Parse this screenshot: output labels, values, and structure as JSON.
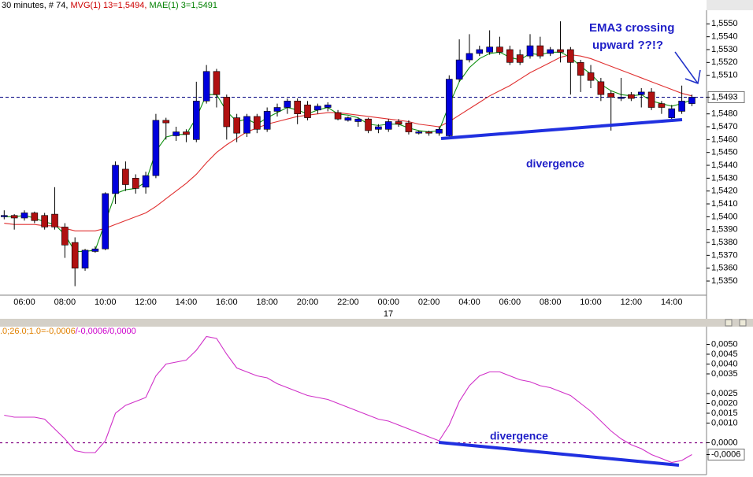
{
  "chart_data": [
    {
      "type": "candlestick",
      "title_parts": [
        {
          "text": "30 minutes, # 74,",
          "color": "#000000"
        },
        {
          "text": "MVG(1) 13=1,5494,",
          "color": "#cc0000"
        },
        {
          "text": "MAE(1) 3=1,5491",
          "color": "#008000"
        }
      ],
      "categories": [
        null,
        null,
        "06:00",
        null,
        null,
        null,
        "08:00",
        null,
        null,
        null,
        "10:00",
        null,
        null,
        null,
        "12:00",
        null,
        null,
        null,
        "14:00",
        null,
        null,
        null,
        "16:00",
        null,
        null,
        null,
        "18:00",
        null,
        null,
        null,
        "20:00",
        null,
        null,
        null,
        "22:00",
        null,
        null,
        null,
        "00:00",
        null,
        null,
        null,
        "02:00",
        null,
        null,
        null,
        "04:00",
        null,
        null,
        null,
        "06:00",
        null,
        null,
        null,
        "08:00",
        null,
        null,
        null,
        "10:00",
        null,
        null,
        null,
        "12:00",
        null,
        null,
        null,
        "14:00",
        null,
        null
      ],
      "date_label": "17",
      "open": [
        1.54,
        1.5401,
        1.5399,
        1.5403,
        1.5401,
        1.5402,
        1.5392,
        1.538,
        1.536,
        1.5373,
        1.5375,
        1.5418,
        1.5437,
        1.543,
        1.5423,
        1.5432,
        1.5475,
        1.5463,
        1.5466,
        1.546,
        1.549,
        1.5513,
        1.5493,
        1.5477,
        1.5465,
        1.5478,
        1.5468,
        1.5482,
        1.5485,
        1.549,
        1.5487,
        1.5483,
        1.5485,
        1.5481,
        1.5475,
        1.5474,
        1.5476,
        1.5468,
        1.5468,
        1.5474,
        1.5473,
        1.5465,
        1.5466,
        1.5465,
        1.5463,
        1.5507,
        1.5522,
        1.5527,
        1.5528,
        1.5532,
        1.553,
        1.5526,
        1.5525,
        1.5533,
        1.5527,
        1.553,
        1.553,
        1.552,
        1.5512,
        1.5505,
        1.5496,
        1.5492,
        1.5495,
        1.5495,
        1.5497,
        1.5488,
        1.5477,
        1.5482,
        1.5488
      ],
      "high": [
        1.5405,
        1.5402,
        1.5405,
        1.5404,
        1.5403,
        1.5423,
        1.5395,
        1.5384,
        1.5375,
        1.5377,
        1.5419,
        1.5443,
        1.5443,
        1.5433,
        1.5435,
        1.548,
        1.5477,
        1.547,
        1.5468,
        1.5505,
        1.5518,
        1.5515,
        1.5495,
        1.548,
        1.548,
        1.548,
        1.5485,
        1.5488,
        1.5492,
        1.5492,
        1.549,
        1.5488,
        1.5489,
        1.5483,
        1.5478,
        1.5477,
        1.5477,
        1.5472,
        1.5476,
        1.5476,
        1.5475,
        1.5467,
        1.5467,
        1.547,
        1.551,
        1.5538,
        1.5542,
        1.5533,
        1.5545,
        1.554,
        1.5533,
        1.553,
        1.5542,
        1.554,
        1.5532,
        1.5552,
        1.5532,
        1.5522,
        1.5518,
        1.5508,
        1.5498,
        1.5508,
        1.5497,
        1.55,
        1.55,
        1.549,
        1.5487,
        1.5502,
        1.5495
      ],
      "low": [
        1.5398,
        1.539,
        1.5397,
        1.5395,
        1.539,
        1.539,
        1.5368,
        1.5346,
        1.5358,
        1.5372,
        1.5374,
        1.541,
        1.542,
        1.5418,
        1.5418,
        1.543,
        1.546,
        1.5459,
        1.5458,
        1.5458,
        1.5488,
        1.5485,
        1.546,
        1.5458,
        1.5462,
        1.5465,
        1.5466,
        1.5478,
        1.548,
        1.5472,
        1.5475,
        1.548,
        1.5482,
        1.5475,
        1.5474,
        1.547,
        1.5465,
        1.5465,
        1.5466,
        1.547,
        1.5464,
        1.5464,
        1.5463,
        1.5463,
        1.5462,
        1.5505,
        1.552,
        1.5525,
        1.5526,
        1.5526,
        1.5518,
        1.5518,
        1.5523,
        1.5523,
        1.5525,
        1.552,
        1.5495,
        1.5497,
        1.55,
        1.549,
        1.5467,
        1.549,
        1.549,
        1.5485,
        1.5483,
        1.548,
        1.5476,
        1.548,
        1.5486
      ],
      "close": [
        1.5401,
        1.5399,
        1.5403,
        1.5397,
        1.5392,
        1.5392,
        1.5378,
        1.536,
        1.5374,
        1.5375,
        1.5418,
        1.544,
        1.5425,
        1.5422,
        1.5432,
        1.5475,
        1.5473,
        1.5466,
        1.5464,
        1.549,
        1.5513,
        1.5495,
        1.547,
        1.5465,
        1.5478,
        1.5468,
        1.5482,
        1.5485,
        1.549,
        1.548,
        1.5477,
        1.5486,
        1.5487,
        1.5476,
        1.5477,
        1.5476,
        1.5467,
        1.547,
        1.5474,
        1.5472,
        1.5466,
        1.5466,
        1.5465,
        1.5468,
        1.5507,
        1.5522,
        1.5527,
        1.553,
        1.5532,
        1.5528,
        1.552,
        1.552,
        1.5533,
        1.5525,
        1.553,
        1.5528,
        1.552,
        1.551,
        1.5506,
        1.5495,
        1.5493,
        1.5493,
        1.5492,
        1.5497,
        1.5485,
        1.5485,
        1.5484,
        1.549,
        1.5493
      ],
      "up_color": "#0000dd",
      "down_color": "#b01010",
      "series": [
        {
          "color": "#e03030",
          "values": [
            1.5395,
            1.5394,
            1.5394,
            1.5394,
            1.5393,
            1.5393,
            1.5391,
            1.5389,
            1.5389,
            1.5389,
            1.5391,
            1.5394,
            1.5397,
            1.54,
            1.5403,
            1.5408,
            1.5414,
            1.542,
            1.5426,
            1.5433,
            1.5442,
            1.545,
            1.5456,
            1.5461,
            1.5466,
            1.5469,
            1.5472,
            1.5474,
            1.5476,
            1.5478,
            1.5479,
            1.548,
            1.5481,
            1.5481,
            1.548,
            1.5479,
            1.5478,
            1.5477,
            1.5476,
            1.5475,
            1.5474,
            1.5472,
            1.5471,
            1.547,
            1.5474,
            1.5479,
            1.5484,
            1.5489,
            1.5494,
            1.5498,
            1.5502,
            1.5507,
            1.5512,
            1.5516,
            1.552,
            1.5524,
            1.5526,
            1.5525,
            1.5523,
            1.552,
            1.5517,
            1.5514,
            1.5511,
            1.5508,
            1.5505,
            1.5502,
            1.5499,
            1.5496,
            1.5494
          ]
        },
        {
          "color": "#109010",
          "values": [
            1.54,
            1.54,
            1.5401,
            1.5399,
            1.5396,
            1.5394,
            1.5386,
            1.5373,
            1.5373,
            1.5374,
            1.5396,
            1.5418,
            1.5421,
            1.5422,
            1.5427,
            1.5451,
            1.5462,
            1.5464,
            1.5464,
            1.5477,
            1.5495,
            1.5495,
            1.5482,
            1.5474,
            1.5476,
            1.5472,
            1.5477,
            1.5481,
            1.5485,
            1.5483,
            1.548,
            1.5483,
            1.5485,
            1.548,
            1.5479,
            1.5477,
            1.5472,
            1.5471,
            1.5472,
            1.5472,
            1.5469,
            1.5467,
            1.5466,
            1.5467,
            1.5487,
            1.5505,
            1.5516,
            1.5523,
            1.5527,
            1.5528,
            1.5524,
            1.5522,
            1.5527,
            1.5526,
            1.5528,
            1.5528,
            1.5524,
            1.5517,
            1.5511,
            1.5503,
            1.5498,
            1.5495,
            1.5494,
            1.5495,
            1.549,
            1.5488,
            1.5486,
            1.5488,
            1.5491
          ]
        }
      ],
      "ylim": [
        1.5339,
        1.556
      ],
      "yticks": [
        {
          "value": 1.555,
          "label": "1,5550"
        },
        {
          "value": 1.554,
          "label": "1,5540"
        },
        {
          "value": 1.553,
          "label": "1,5530"
        },
        {
          "value": 1.552,
          "label": "1,5520"
        },
        {
          "value": 1.551,
          "label": "1,5510"
        },
        {
          "value": 1.548,
          "label": "1,5480"
        },
        {
          "value": 1.547,
          "label": "1,5470"
        },
        {
          "value": 1.546,
          "label": "1,5460"
        },
        {
          "value": 1.545,
          "label": "1,5450"
        },
        {
          "value": 1.544,
          "label": "1,5440"
        },
        {
          "value": 1.543,
          "label": "1,5430"
        },
        {
          "value": 1.542,
          "label": "1,5420"
        },
        {
          "value": 1.541,
          "label": "1,5410"
        },
        {
          "value": 1.54,
          "label": "1,5400"
        },
        {
          "value": 1.539,
          "label": "1,5390"
        },
        {
          "value": 1.538,
          "label": "1,5380"
        },
        {
          "value": 1.537,
          "label": "1,5370"
        },
        {
          "value": 1.536,
          "label": "1,5360"
        },
        {
          "value": 1.535,
          "label": "1,5350"
        }
      ],
      "price_line": {
        "value": 1.5493,
        "label": "1,5493"
      },
      "grid": false,
      "annotations": [
        "EMA3 crossing",
        "upward ??!?",
        "divergence"
      ]
    },
    {
      "type": "line",
      "title_parts": [
        {
          "text": ".0;26.0;1.0=-0,0006",
          "color": "#e08000"
        },
        {
          "text": "/-0,0006/0,0000",
          "color": "#cc00cc"
        }
      ],
      "color": "#d030c8",
      "values": [
        0.0014,
        0.0013,
        0.0013,
        0.0013,
        0.0012,
        0.0007,
        0.0002,
        -0.0004,
        -0.0005,
        -0.0005,
        0.0001,
        0.0015,
        0.0019,
        0.0021,
        0.0023,
        0.0034,
        0.004,
        0.0041,
        0.0042,
        0.0047,
        0.0054,
        0.0053,
        0.0045,
        0.0038,
        0.0036,
        0.0034,
        0.0033,
        0.003,
        0.0028,
        0.0026,
        0.0024,
        0.0023,
        0.0022,
        0.002,
        0.0018,
        0.0016,
        0.0014,
        0.0012,
        0.0011,
        0.0009,
        0.0007,
        0.0005,
        0.0003,
        0.0001,
        0.0009,
        0.0021,
        0.0029,
        0.0034,
        0.0036,
        0.0036,
        0.0034,
        0.0032,
        0.0031,
        0.0029,
        0.0028,
        0.0026,
        0.0024,
        0.002,
        0.0016,
        0.0011,
        0.0006,
        0.0002,
        -0.0001,
        -0.0003,
        -0.0006,
        -0.0008,
        -0.001,
        -0.0009,
        -0.0006
      ],
      "ylim": [
        -0.0015,
        0.0057
      ],
      "yticks": [
        {
          "value": 0.005,
          "label": "0,0050"
        },
        {
          "value": 0.0045,
          "label": "0,0045"
        },
        {
          "value": 0.004,
          "label": "0,0040"
        },
        {
          "value": 0.0035,
          "label": "0,0035"
        },
        {
          "value": 0.0025,
          "label": "0,0025"
        },
        {
          "value": 0.002,
          "label": "0,0020"
        },
        {
          "value": 0.0015,
          "label": "0,0015"
        },
        {
          "value": 0.001,
          "label": "0,0010"
        },
        {
          "value": 0,
          "label": "0,0000"
        }
      ],
      "last_label": {
        "value": -0.0006,
        "label": "-0,0006"
      },
      "zero_line": true,
      "annotations": [
        "divergence"
      ]
    }
  ]
}
